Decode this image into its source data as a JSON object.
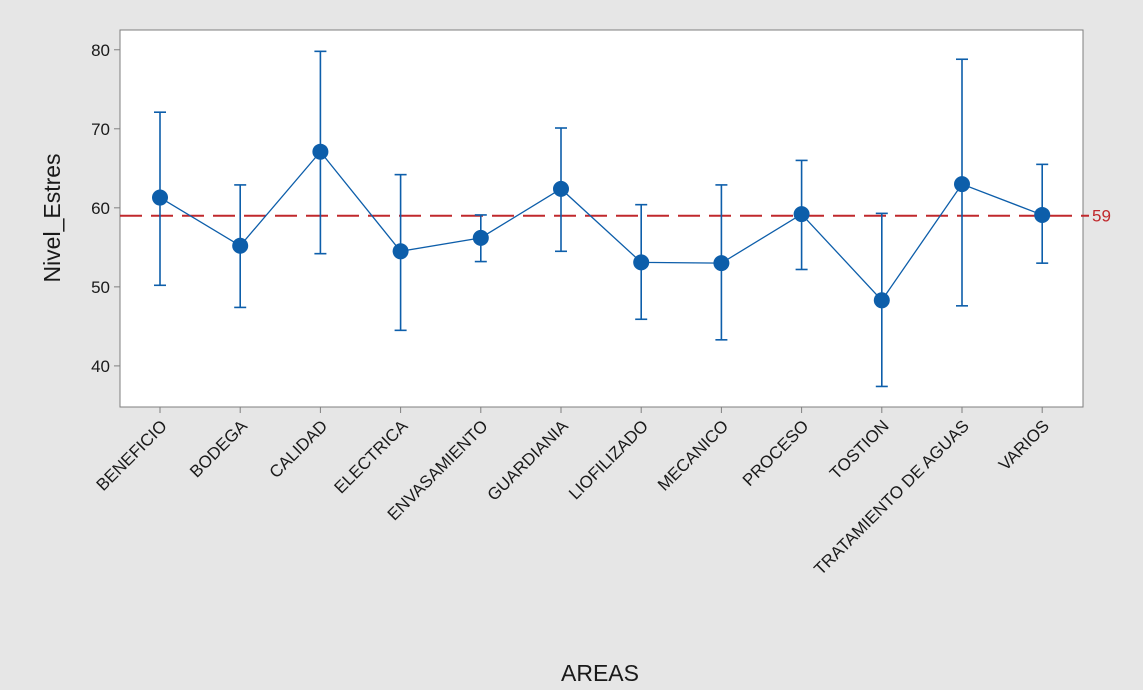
{
  "chart_data": {
    "type": "interval",
    "xlabel": "AREAS",
    "ylabel": "Nivel_Estres",
    "categories": [
      "BENEFICIO",
      "BODEGA",
      "CALIDAD",
      "ELECTRICA",
      "ENVASAMIENTO",
      "GUARDIANIA",
      "LIOFILIZADO",
      "MECANICO",
      "PROCESO",
      "TOSTION",
      "TRATAMIENTO DE AGUAS",
      "VARIOS"
    ],
    "series": [
      {
        "means": [
          61.3,
          55.2,
          67.1,
          54.5,
          56.2,
          62.4,
          53.1,
          53.0,
          59.2,
          48.3,
          63.0,
          59.1
        ],
        "lower": [
          50.2,
          47.4,
          54.2,
          44.5,
          53.2,
          54.5,
          45.9,
          43.3,
          52.2,
          37.4,
          47.6,
          53.0
        ],
        "upper": [
          72.1,
          62.9,
          79.8,
          64.2,
          59.1,
          70.1,
          60.4,
          62.9,
          66.0,
          59.3,
          78.8,
          65.5
        ]
      }
    ],
    "reference_line": {
      "value": 59,
      "label": "59",
      "color": "#c0282c",
      "style": "dashed"
    },
    "yticks": [
      40,
      50,
      60,
      70,
      80
    ],
    "ylim": [
      34.8,
      82.5
    ],
    "colors": {
      "series": "#0d5eaa",
      "background": "#e6e6e6",
      "plot_background": "#ffffff",
      "axis": "#7f7f7f"
    }
  }
}
